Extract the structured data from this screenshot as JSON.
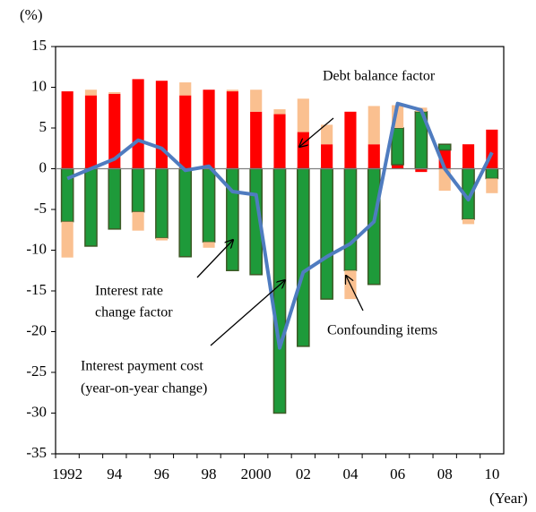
{
  "chart_data": {
    "type": "stacked_bar",
    "y_unit": "(%)",
    "x_unit": "(Year)",
    "categories": [
      "1992",
      null,
      "94",
      null,
      "96",
      null,
      "98",
      null,
      "2000",
      null,
      "02",
      null,
      "04",
      null,
      "06",
      null,
      "08",
      null,
      "10"
    ],
    "ylim": [
      -35,
      15
    ],
    "yticks": [
      -35,
      -30,
      -25,
      -20,
      -15,
      -10,
      -5,
      0,
      5,
      10,
      15
    ],
    "series": [
      {
        "type": "bar",
        "color": "#ff0000",
        "values": [
          9.5,
          9.0,
          9.2,
          11.0,
          10.8,
          9.0,
          9.7,
          9.5,
          7.0,
          6.7,
          4.5,
          3.0,
          7.0,
          3.0,
          0.5,
          -0.4,
          2.3,
          3.0,
          4.8
        ]
      },
      {
        "type": "bar",
        "color": "#1e9a3a",
        "stroke": "#3d5a26",
        "values": [
          -6.5,
          -9.5,
          -7.4,
          -5.3,
          -8.5,
          -10.8,
          -9.0,
          -12.5,
          -13.0,
          -30.0,
          -21.8,
          -16.0,
          -12.5,
          -14.2,
          4.5,
          7.0,
          0.7,
          -6.2,
          -1.2
        ]
      },
      {
        "type": "bar",
        "color": "#fac090",
        "values": [
          -4.4,
          0.7,
          0.2,
          -2.3,
          -0.3,
          1.6,
          -0.7,
          0.2,
          2.7,
          0.6,
          4.1,
          2.4,
          -3.5,
          4.7,
          2.8,
          0.5,
          -2.7,
          -0.6,
          -1.8
        ]
      },
      {
        "type": "line",
        "color": "#4f7cc0",
        "values": [
          -1.2,
          0.0,
          1.2,
          3.5,
          2.5,
          -0.2,
          0.3,
          -2.8,
          -3.2,
          -22.0,
          -12.7,
          -10.8,
          -9.2,
          -6.5,
          8.0,
          7.2,
          0.0,
          -3.8,
          2.0
        ]
      }
    ],
    "annotations": [
      {
        "lines": [
          "Debt balance  factor"
        ]
      },
      {
        "lines": [
          "Interest rate",
          "change factor"
        ]
      },
      {
        "lines": [
          "Confounding items"
        ]
      },
      {
        "lines": [
          "Interest payment cost",
          "(year-on-year change)"
        ]
      }
    ]
  }
}
